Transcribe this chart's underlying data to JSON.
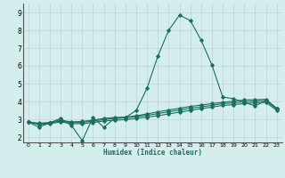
{
  "xlabel": "Humidex (Indice chaleur)",
  "bg_color": "#d4eeed",
  "grid_color": "#c2d8d6",
  "line_color": "#1a6e5e",
  "xlim": [
    -0.5,
    23.5
  ],
  "ylim": [
    1.7,
    9.5
  ],
  "xticks": [
    0,
    1,
    2,
    3,
    4,
    5,
    6,
    7,
    8,
    9,
    10,
    11,
    12,
    13,
    14,
    15,
    16,
    17,
    18,
    19,
    20,
    21,
    22,
    23
  ],
  "yticks": [
    2,
    3,
    4,
    5,
    6,
    7,
    8,
    9
  ],
  "curve1_x": [
    0,
    1,
    2,
    3,
    4,
    5,
    6,
    7,
    8,
    9,
    10,
    11,
    12,
    13,
    14,
    15,
    16,
    17,
    18,
    19,
    20,
    21,
    22,
    23
  ],
  "curve1_y": [
    2.85,
    2.55,
    2.8,
    3.05,
    2.65,
    1.8,
    3.1,
    2.55,
    3.05,
    3.1,
    3.5,
    4.75,
    6.55,
    8.0,
    8.85,
    8.55,
    7.45,
    6.05,
    4.25,
    4.15,
    3.95,
    3.75,
    4.05,
    3.6
  ],
  "curve2_x": [
    0,
    1,
    2,
    3,
    4,
    5,
    6,
    7,
    8,
    9,
    10,
    11,
    12,
    13,
    14,
    15,
    16,
    17,
    18,
    19,
    20,
    21,
    22,
    23
  ],
  "curve2_y": [
    2.85,
    2.78,
    2.82,
    2.95,
    2.85,
    2.88,
    2.95,
    3.05,
    3.1,
    3.12,
    3.2,
    3.3,
    3.42,
    3.52,
    3.62,
    3.72,
    3.8,
    3.88,
    3.95,
    4.02,
    4.08,
    4.1,
    4.12,
    3.62
  ],
  "curve3_x": [
    0,
    1,
    2,
    3,
    4,
    5,
    6,
    7,
    8,
    9,
    10,
    11,
    12,
    13,
    14,
    15,
    16,
    17,
    18,
    19,
    20,
    21,
    22,
    23
  ],
  "curve3_y": [
    2.85,
    2.75,
    2.8,
    2.9,
    2.82,
    2.82,
    2.9,
    2.98,
    3.05,
    3.08,
    3.15,
    3.22,
    3.32,
    3.42,
    3.52,
    3.62,
    3.7,
    3.78,
    3.88,
    3.92,
    3.98,
    4.02,
    4.05,
    3.58
  ],
  "curve4_x": [
    0,
    1,
    2,
    3,
    4,
    5,
    6,
    7,
    8,
    9,
    10,
    11,
    12,
    13,
    14,
    15,
    16,
    17,
    18,
    19,
    20,
    21,
    22,
    23
  ],
  "curve4_y": [
    2.85,
    2.7,
    2.75,
    2.85,
    2.75,
    2.75,
    2.82,
    2.9,
    2.95,
    2.98,
    3.05,
    3.12,
    3.2,
    3.3,
    3.4,
    3.5,
    3.6,
    3.68,
    3.78,
    3.82,
    3.88,
    3.92,
    3.95,
    3.5
  ]
}
